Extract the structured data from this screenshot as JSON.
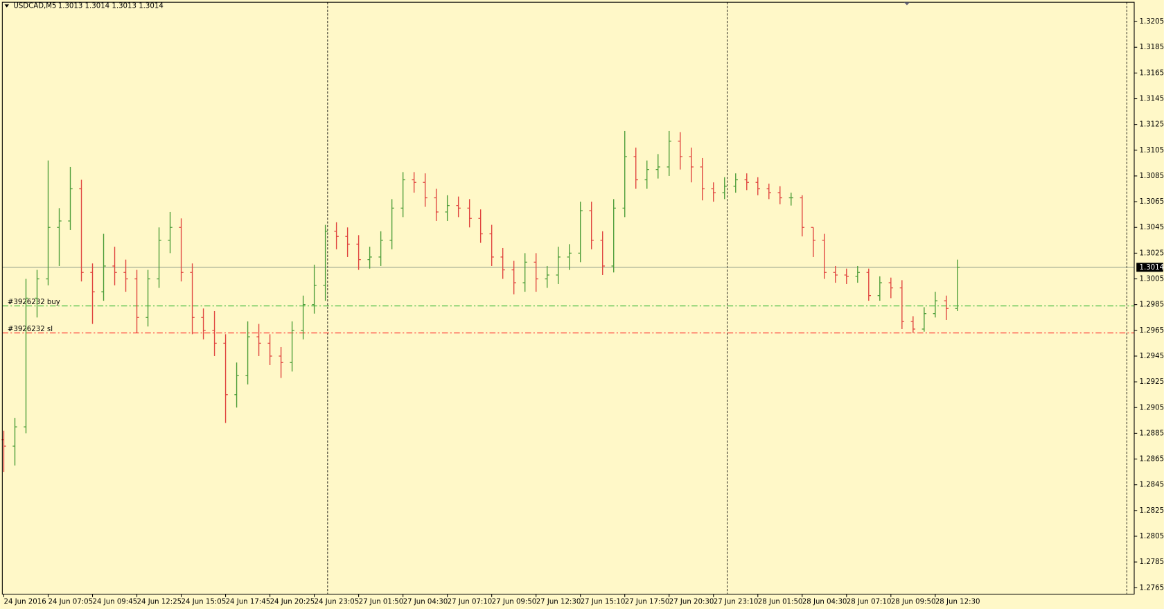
{
  "chart_data": {
    "type": "ohlc",
    "title": "USDCAD,M5",
    "info": "1.3013 1.3014 1.3013 1.3014",
    "categories": [
      "24 Jun 2016",
      null,
      null,
      null,
      "24 Jun 07:05",
      null,
      null,
      null,
      "24 Jun 09:45",
      null,
      null,
      null,
      "24 Jun 12:25",
      null,
      null,
      null,
      "24 Jun 15:05",
      null,
      null,
      null,
      "24 Jun 17:45",
      null,
      null,
      null,
      "24 Jun 20:25",
      null,
      null,
      null,
      "24 Jun 23:05",
      null,
      null,
      null,
      "27 Jun 01:50",
      null,
      null,
      null,
      "27 Jun 04:30",
      null,
      null,
      null,
      "27 Jun 07:10",
      null,
      null,
      null,
      "27 Jun 09:50",
      null,
      null,
      null,
      "27 Jun 12:30",
      null,
      null,
      null,
      "27 Jun 15:10",
      null,
      null,
      null,
      "27 Jun 17:50",
      null,
      null,
      null,
      "27 Jun 20:30",
      null,
      null,
      null,
      "27 Jun 23:10",
      null,
      null,
      null,
      "28 Jun 01:50",
      null,
      null,
      null,
      "28 Jun 04:30",
      null,
      null,
      null,
      "28 Jun 07:10",
      null,
      null,
      null,
      "28 Jun 09:50",
      null,
      null,
      null,
      "28 Jun 12:30",
      null,
      null
    ],
    "open": [
      1.288,
      1.2875,
      1.289,
      1.299,
      1.3005,
      1.3045,
      1.305,
      1.3075,
      1.301,
      1.2995,
      1.3015,
      1.301,
      1.3005,
      1.2975,
      1.3005,
      1.3035,
      1.3045,
      1.301,
      1.2975,
      1.2965,
      1.2955,
      1.2915,
      1.293,
      1.296,
      1.2955,
      1.2945,
      1.294,
      1.2965,
      1.2985,
      1.3,
      1.3042,
      1.3038,
      1.3032,
      1.302,
      1.3022,
      1.3035,
      1.306,
      1.3082,
      1.308,
      1.3068,
      1.3057,
      1.3062,
      1.306,
      1.3052,
      1.304,
      1.3022,
      1.3012,
      1.3002,
      1.3018,
      1.3005,
      1.3008,
      1.3022,
      1.3025,
      1.3058,
      1.3035,
      1.3015,
      1.306,
      1.31,
      1.3082,
      1.309,
      1.3092,
      1.3112,
      1.31,
      1.3092,
      1.3075,
      1.3072,
      1.3077,
      1.3082,
      1.308,
      1.3075,
      1.3072,
      1.3068,
      1.3068,
      1.3045,
      1.3035,
      1.301,
      1.3008,
      1.3007,
      1.301,
      1.2992,
      1.3002,
      1.2998,
      1.2972,
      1.2966,
      1.2978,
      1.2988,
      1.2982
    ],
    "high": [
      1.2887,
      1.2897,
      1.3005,
      1.3012,
      1.3097,
      1.306,
      1.3092,
      1.3082,
      1.3017,
      1.304,
      1.303,
      1.302,
      1.3012,
      1.3012,
      1.3045,
      1.3057,
      1.3052,
      1.3017,
      1.2982,
      1.298,
      1.2962,
      1.294,
      1.2972,
      1.297,
      1.2962,
      1.2952,
      1.2972,
      1.2992,
      1.3016,
      1.3047,
      1.3049,
      1.3045,
      1.3039,
      1.303,
      1.3042,
      1.3067,
      1.3088,
      1.3088,
      1.3087,
      1.3075,
      1.307,
      1.3069,
      1.3067,
      1.3059,
      1.3047,
      1.3029,
      1.3019,
      1.3025,
      1.3025,
      1.3015,
      1.303,
      1.3032,
      1.3065,
      1.3065,
      1.3042,
      1.3067,
      1.312,
      1.3107,
      1.3097,
      1.3102,
      1.312,
      1.3119,
      1.3107,
      1.3099,
      1.308,
      1.3084,
      1.3087,
      1.3087,
      1.3084,
      1.3079,
      1.3077,
      1.3072,
      1.307,
      1.3045,
      1.304,
      1.3015,
      1.3013,
      1.3015,
      1.3013,
      1.3007,
      1.3006,
      1.3004,
      1.2976,
      1.2983,
      1.2995,
      1.2992,
      1.302
    ],
    "low": [
      1.2855,
      1.286,
      1.2885,
      1.2975,
      1.3,
      1.3015,
      1.3043,
      1.3003,
      1.297,
      1.2988,
      1.3,
      1.2995,
      1.2963,
      1.2968,
      1.2998,
      1.3025,
      1.3003,
      1.2962,
      1.2958,
      1.2945,
      1.2893,
      1.2905,
      1.2923,
      1.2945,
      1.2938,
      1.2928,
      1.2933,
      1.2958,
      1.2978,
      1.2988,
      1.3028,
      1.3022,
      1.3012,
      1.3013,
      1.3015,
      1.3028,
      1.3053,
      1.3072,
      1.3061,
      1.305,
      1.305,
      1.3053,
      1.3045,
      1.3033,
      1.3015,
      1.3005,
      1.2993,
      1.2995,
      1.2995,
      1.2998,
      1.3001,
      1.3012,
      1.3018,
      1.3028,
      1.3008,
      1.301,
      1.3053,
      1.3075,
      1.3075,
      1.3083,
      1.3085,
      1.309,
      1.308,
      1.3066,
      1.3065,
      1.3067,
      1.3072,
      1.3074,
      1.307,
      1.3067,
      1.3063,
      1.3062,
      1.3038,
      1.3022,
      1.3005,
      1.3002,
      1.3001,
      1.3002,
      1.2988,
      1.2988,
      1.299,
      1.2966,
      1.2963,
      1.2964,
      1.2975,
      1.2973,
      1.298
    ],
    "close": [
      1.2875,
      1.289,
      1.299,
      1.3005,
      1.3045,
      1.305,
      1.3075,
      1.301,
      1.2995,
      1.3015,
      1.301,
      1.3005,
      1.2975,
      1.3005,
      1.3035,
      1.3045,
      1.301,
      1.2975,
      1.2965,
      1.2955,
      1.2915,
      1.293,
      1.296,
      1.2955,
      1.2945,
      1.294,
      1.2965,
      1.2985,
      1.3,
      1.3042,
      1.3038,
      1.3032,
      1.302,
      1.3022,
      1.3035,
      1.306,
      1.3082,
      1.308,
      1.3068,
      1.3057,
      1.3062,
      1.306,
      1.3052,
      1.304,
      1.3022,
      1.3012,
      1.3002,
      1.3018,
      1.3005,
      1.3008,
      1.3022,
      1.3025,
      1.3058,
      1.3035,
      1.3015,
      1.306,
      1.31,
      1.3082,
      1.309,
      1.3092,
      1.3112,
      1.31,
      1.3092,
      1.3075,
      1.3072,
      1.3077,
      1.3082,
      1.308,
      1.3075,
      1.3072,
      1.3068,
      1.3068,
      1.3045,
      1.3035,
      1.301,
      1.3008,
      1.3007,
      1.301,
      1.2992,
      1.3002,
      1.2998,
      1.2972,
      1.2966,
      1.2978,
      1.2988,
      1.2982,
      1.3014
    ],
    "up_color": "#4e9e3a",
    "down_color": "#e0453f",
    "ylim": [
      1.276,
      1.322
    ],
    "yticks": [
      1.3205,
      1.3185,
      1.3165,
      1.3145,
      1.3125,
      1.3105,
      1.3085,
      1.3065,
      1.3045,
      1.3025,
      1.3005,
      1.2985,
      1.2965,
      1.2945,
      1.2925,
      1.2905,
      1.2885,
      1.2865,
      1.2845,
      1.2825,
      1.2805,
      1.2785,
      1.2765
    ],
    "current_price": 1.3014,
    "levels": [
      {
        "name": "#3926232 buy",
        "value": 1.2984,
        "color": "#2fb52f"
      },
      {
        "name": "#3926232 sl",
        "value": 1.2963,
        "color": "#ff2020"
      }
    ]
  }
}
